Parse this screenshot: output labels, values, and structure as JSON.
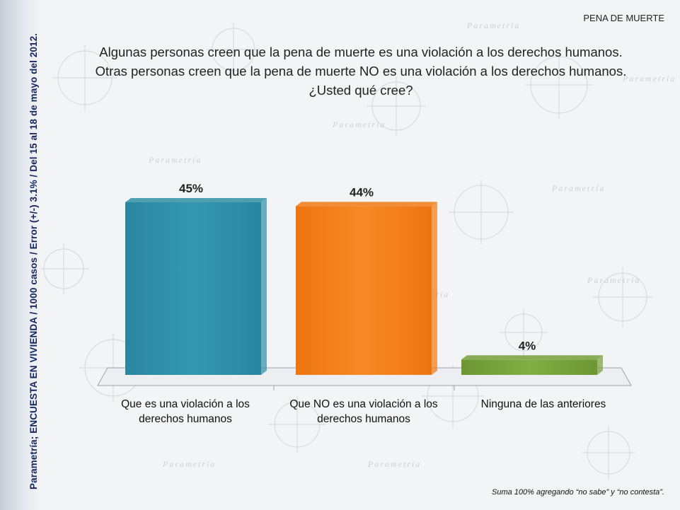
{
  "section_label": "PENA DE MUERTE",
  "side_text": "Parametría; ENCUESTA EN VIVIENDA / 1000 casos / Error (+/-) 3.1% / Del 15 al 18 de mayo del 2012.",
  "question_lines": [
    "Algunas personas creen que la pena de muerte es una violación a los derechos humanos.",
    "Otras personas creen que la pena de muerte NO es una violación a los derechos humanos.",
    "¿Usted qué cree?"
  ],
  "footnote": "Suma 100%  agregando “no sabe” y “no contesta”.",
  "watermark_text": "Parametría",
  "chart_data": {
    "type": "bar",
    "categories": [
      [
        "Que es una violación a los",
        "derechos humanos"
      ],
      [
        "Que NO es una violación a los",
        "derechos humanos"
      ],
      [
        "Ninguna de las anteriores"
      ]
    ],
    "values": [
      45,
      44,
      4
    ],
    "value_labels": [
      "45%",
      "44%",
      "4%"
    ],
    "colors": [
      "#2f8fa6",
      "#f07a14",
      "#76a03a"
    ],
    "ylim": [
      0,
      50
    ],
    "grid": false,
    "legend": "none"
  }
}
